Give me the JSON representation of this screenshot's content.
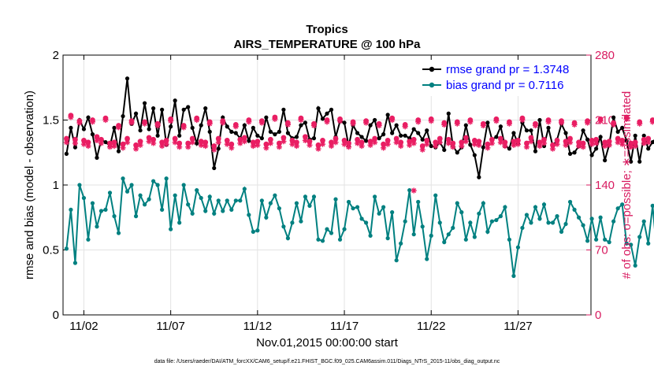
{
  "chart_data": {
    "type": "line",
    "title": "Tropics",
    "subtitle": "AIRS_TEMPERATURE @ 100 hPa",
    "xlabel": "Nov.01,2015 00:00:00 start",
    "ylabel": "rmse and bias (model - observation)",
    "y2label": "# of obs: o=possible; ∗=assimilated",
    "xlim": [
      0.8,
      31.2
    ],
    "ylim": [
      0,
      2
    ],
    "y2lim": [
      0,
      280
    ],
    "x_ticks": [
      2,
      7,
      12,
      17,
      22,
      27
    ],
    "x_tick_labels": [
      "11/02",
      "11/07",
      "11/12",
      "11/17",
      "11/22",
      "11/27"
    ],
    "y_ticks": [
      0,
      0.5,
      1,
      1.5,
      2
    ],
    "y_tick_labels": [
      "0",
      "0.5",
      "1",
      "1.5",
      "2"
    ],
    "y2_ticks": [
      0,
      70,
      140,
      210,
      280
    ],
    "y2_tick_labels": [
      "0",
      "70",
      "140",
      "210",
      "280"
    ],
    "grid": true,
    "legend_position": "top-right",
    "x_start": 1.0,
    "x_step": 0.25,
    "series": [
      {
        "name": "rmse grand pr = 1.3748",
        "color": "#000000",
        "marker": "circle",
        "values": [
          1.24,
          1.44,
          1.29,
          1.5,
          1.43,
          1.52,
          1.39,
          1.21,
          1.35,
          1.33,
          1.3,
          1.44,
          1.26,
          1.53,
          1.82,
          1.47,
          1.55,
          1.42,
          1.63,
          1.43,
          1.59,
          1.38,
          1.58,
          1.31,
          1.45,
          1.65,
          1.38,
          1.58,
          1.6,
          1.44,
          1.32,
          1.46,
          1.59,
          1.41,
          1.13,
          1.28,
          1.52,
          1.45,
          1.41,
          1.4,
          1.36,
          1.46,
          1.34,
          1.44,
          1.38,
          1.36,
          1.52,
          1.41,
          1.39,
          1.41,
          1.58,
          1.4,
          1.36,
          1.37,
          1.46,
          1.48,
          1.35,
          1.36,
          1.59,
          1.51,
          1.55,
          1.58,
          1.37,
          1.49,
          1.48,
          1.3,
          1.46,
          1.4,
          1.37,
          1.34,
          1.46,
          1.5,
          1.36,
          1.39,
          1.54,
          1.4,
          1.46,
          1.38,
          1.38,
          1.36,
          1.43,
          1.4,
          1.35,
          1.42,
          1.3,
          1.29,
          1.33,
          1.27,
          1.55,
          1.3,
          1.25,
          1.29,
          1.46,
          1.31,
          1.23,
          1.06,
          1.29,
          1.48,
          1.35,
          1.37,
          1.45,
          1.3,
          1.28,
          1.4,
          1.32,
          1.48,
          1.42,
          1.42,
          1.26,
          1.5,
          1.3,
          1.44,
          1.3,
          1.35,
          1.47,
          1.4,
          1.24,
          1.25,
          1.3,
          1.42,
          1.35,
          1.23,
          1.28,
          1.37,
          1.19,
          1.31,
          1.52,
          1.41,
          1.44,
          1.34,
          1.18,
          1.38,
          1.18,
          1.38,
          1.28,
          1.33,
          1.37,
          1.33,
          1.36,
          1.4,
          1.47,
          1.34,
          1.41,
          1.38,
          1.21,
          1.35,
          1.49,
          1.4,
          1.47,
          1.33,
          1.3,
          1.24,
          1.35,
          1.29,
          1.4,
          1.33,
          1.34,
          1.37,
          1.56,
          1.45,
          1.46,
          1.39,
          1.31,
          1.38,
          1.38,
          1.5,
          1.4,
          1.3,
          1.4,
          1.28,
          1.37,
          1.51,
          1.46,
          1.44,
          1.5,
          1.36,
          1.31,
          1.48,
          1.4,
          1.44,
          1.36,
          1.27,
          1.38,
          1.53,
          1.29,
          1.49,
          1.41,
          1.3,
          1.37,
          1.19,
          1.34,
          1.32,
          1.42,
          1.26,
          1.42,
          1.32,
          1.34,
          1.25,
          1.3,
          1.28,
          1.33,
          1.2,
          1.36,
          1.35,
          1.28,
          1.52,
          1.43,
          1.4,
          1.35,
          1.49,
          1.38,
          1.31,
          1.3,
          1.45,
          1.29,
          1.39,
          1.46,
          1.36,
          1.37,
          1.34,
          1.5,
          1.38,
          1.37,
          1.42,
          1.51,
          1.36,
          1.29,
          1.38,
          1.41,
          1.33,
          1.3,
          1.37,
          1.3,
          1.35,
          1.28
        ]
      },
      {
        "name": "bias grand pr = 0.7116",
        "color": "#008080",
        "marker": "circle",
        "values": [
          0.51,
          0.81,
          0.4,
          1.0,
          0.9,
          0.58,
          0.86,
          0.68,
          0.8,
          0.81,
          0.94,
          0.76,
          0.63,
          1.05,
          0.95,
          1.0,
          0.76,
          0.92,
          0.85,
          0.89,
          1.03,
          1.0,
          0.81,
          1.05,
          0.66,
          0.92,
          0.71,
          1.0,
          0.85,
          0.78,
          0.96,
          0.9,
          0.8,
          0.91,
          0.78,
          0.88,
          0.8,
          0.88,
          0.81,
          0.88,
          0.88,
          0.97,
          0.77,
          0.64,
          0.65,
          0.88,
          0.75,
          0.86,
          0.92,
          0.82,
          0.68,
          0.59,
          0.71,
          0.86,
          0.72,
          0.91,
          0.84,
          0.91,
          0.58,
          0.57,
          0.66,
          0.63,
          0.89,
          0.58,
          0.66,
          0.87,
          0.82,
          0.83,
          0.74,
          0.71,
          0.61,
          0.91,
          0.78,
          0.83,
          0.59,
          0.79,
          0.42,
          0.55,
          0.72,
          0.96,
          0.62,
          0.87,
          0.68,
          0.43,
          0.61,
          0.92,
          0.71,
          0.56,
          0.62,
          0.67,
          0.86,
          0.79,
          0.58,
          0.71,
          0.6,
          0.78,
          0.86,
          0.64,
          0.72,
          0.73,
          0.76,
          0.83,
          0.58,
          0.3,
          0.52,
          0.67,
          0.77,
          0.71,
          0.83,
          0.74,
          0.85,
          0.71,
          0.71,
          0.76,
          0.64,
          0.7,
          0.87,
          0.81,
          0.75,
          0.69,
          0.57,
          0.74,
          0.58,
          0.75,
          0.58,
          0.56,
          0.72,
          0.82,
          0.85,
          0.55,
          0.54,
          0.38,
          0.6,
          0.72,
          0.55,
          0.84,
          0.48,
          0.55,
          0.72,
          0.66,
          0.72,
          0.81,
          0.67,
          0.43,
          0.69,
          0.8,
          0.84,
          0.52,
          0.77,
          0.75,
          0.67,
          0.59,
          0.62,
          0.52,
          0.66,
          0.68,
          0.71,
          0.75,
          0.57,
          0.79,
          0.48,
          0.82,
          0.57,
          0.71,
          0.53,
          0.6,
          0.66,
          0.86,
          0.74,
          0.72,
          0.79,
          0.72,
          0.61,
          0.51,
          0.8,
          0.79,
          0.74,
          0.75,
          0.47,
          0.62,
          0.59,
          0.87,
          0.69,
          0.58,
          0.68,
          0.7,
          0.62,
          0.47,
          0.57,
          0.69,
          0.75,
          0.77,
          0.8,
          0.57,
          0.5,
          0.71,
          0.65,
          0.74,
          0.84,
          0.78,
          0.58,
          0.68,
          0.6,
          0.62,
          0.65,
          0.76,
          0.8,
          0.63,
          0.73,
          0.58,
          0.57,
          0.5,
          0.63,
          0.7,
          0.62,
          0.63,
          0.73,
          0.85,
          0.78,
          0.87,
          0.72,
          0.67,
          0.85,
          0.61,
          0.57,
          0.53,
          0.81,
          0.62,
          0.6,
          0.71,
          0.69,
          0.63,
          0.58
        ]
      },
      {
        "name": "# of obs possible",
        "color": "#e91e63",
        "marker": "circle",
        "axis": "right",
        "values": [
          190,
          215,
          189,
          209,
          188,
          186,
          210,
          192,
          189,
          212,
          185,
          186,
          204,
          184,
          190,
          209,
          183,
          187,
          208,
          191,
          189,
          206,
          186,
          188,
          211,
          190,
          185,
          204,
          185,
          190,
          212,
          187,
          186,
          208,
          182,
          190,
          209,
          188,
          184,
          205,
          189,
          191,
          210,
          186,
          187,
          209,
          184,
          189,
          213,
          185,
          191,
          207,
          188,
          186,
          212,
          192,
          187,
          206,
          183,
          188,
          210,
          186,
          190,
          211,
          188,
          185,
          208,
          189,
          186,
          209,
          187,
          190,
          206,
          184,
          188,
          212,
          190,
          186,
          205,
          187,
          189,
          210,
          182,
          188,
          211,
          186,
          190,
          207,
          189,
          185,
          208,
          186,
          191,
          210,
          188,
          187,
          206,
          184,
          189,
          211,
          190,
          186,
          208,
          187,
          188,
          212,
          185,
          191,
          206,
          186,
          189,
          210,
          183,
          188,
          209,
          187,
          190,
          207,
          186,
          185,
          209,
          188,
          189,
          211,
          186,
          187,
          207,
          190,
          188,
          213,
          185,
          186,
          208,
          189,
          190,
          210,
          185,
          188,
          206,
          186,
          191,
          209,
          187,
          188,
          212,
          186,
          189,
          206,
          185,
          190,
          210,
          188,
          187,
          208,
          189,
          186,
          211,
          187,
          190,
          206,
          185,
          188,
          209,
          189,
          186,
          210,
          188,
          187,
          207,
          190,
          186,
          211,
          185,
          189,
          208,
          186,
          188,
          209,
          187,
          190,
          206,
          185,
          188,
          212,
          188,
          186,
          207,
          189,
          187,
          210,
          190,
          184,
          208,
          187,
          189,
          211,
          185,
          188,
          206,
          186,
          190,
          210,
          187,
          189,
          208,
          188,
          186,
          211,
          185,
          187,
          206,
          190,
          188,
          209,
          186,
          187,
          208,
          189,
          188,
          211,
          185,
          190,
          206,
          186,
          188,
          209,
          187,
          186,
          210,
          189,
          188,
          207,
          185,
          190,
          209,
          188,
          187,
          206,
          186,
          0
        ]
      },
      {
        "name": "# of obs assimilated",
        "color": "#e91e63",
        "marker": "star",
        "axis": "right",
        "values": [
          186,
          213,
          185,
          207,
          184,
          182,
          208,
          188,
          185,
          210,
          181,
          182,
          202,
          180,
          186,
          207,
          179,
          183,
          206,
          187,
          185,
          204,
          182,
          184,
          209,
          186,
          181,
          202,
          181,
          186,
          210,
          183,
          182,
          206,
          178,
          186,
          207,
          184,
          180,
          203,
          185,
          187,
          208,
          182,
          183,
          207,
          180,
          185,
          211,
          181,
          187,
          205,
          184,
          182,
          210,
          188,
          183,
          204,
          179,
          184,
          208,
          182,
          186,
          209,
          184,
          181,
          206,
          185,
          182,
          207,
          183,
          186,
          204,
          180,
          184,
          210,
          186,
          182,
          203,
          183,
          185,
          208,
          178,
          184,
          209,
          182,
          186,
          205,
          185,
          181,
          206,
          182,
          187,
          208,
          184,
          183,
          204,
          180,
          185,
          209,
          186,
          182,
          206,
          183,
          184,
          210,
          181,
          187,
          204,
          182,
          185,
          208,
          179,
          184,
          207,
          183,
          186,
          205,
          182,
          181,
          207,
          184,
          185,
          209,
          182,
          183,
          205,
          186,
          184,
          211,
          181,
          182,
          206,
          185,
          186,
          208,
          181,
          184,
          204,
          182,
          187,
          207,
          183,
          184,
          210,
          182,
          185,
          204,
          181,
          186,
          208,
          184,
          183,
          206,
          185,
          182,
          209,
          183,
          186,
          204,
          181,
          184,
          207,
          185,
          182,
          208,
          184,
          183,
          205,
          186,
          182,
          209,
          181,
          185,
          206,
          182,
          184,
          207,
          183,
          186,
          204,
          181,
          184,
          210,
          184,
          182,
          205,
          185,
          183,
          208,
          186,
          180,
          206,
          183,
          185,
          209,
          181,
          184,
          204,
          182,
          186,
          208,
          183,
          185,
          206,
          184,
          182,
          209,
          181,
          183,
          204,
          186,
          184,
          207,
          182,
          183,
          206,
          185,
          184,
          209,
          181,
          186,
          204,
          182,
          184,
          207,
          183,
          182,
          208,
          185,
          184,
          205,
          181,
          186,
          207,
          184,
          183,
          204,
          182,
          0
        ]
      }
    ],
    "annotations": [
      {
        "x": 21.0,
        "y2": 134,
        "marker": "star",
        "note": "isolated assimilated-count marker"
      }
    ]
  },
  "footnote": "data file: /Users/raeder/DAI/ATM_forcXX/CAM6_setup/f.e21.FHIST_BGC.f09_025.CAM6assim.011/Diags_NTrS_2015-11/obs_diag_output.nc"
}
